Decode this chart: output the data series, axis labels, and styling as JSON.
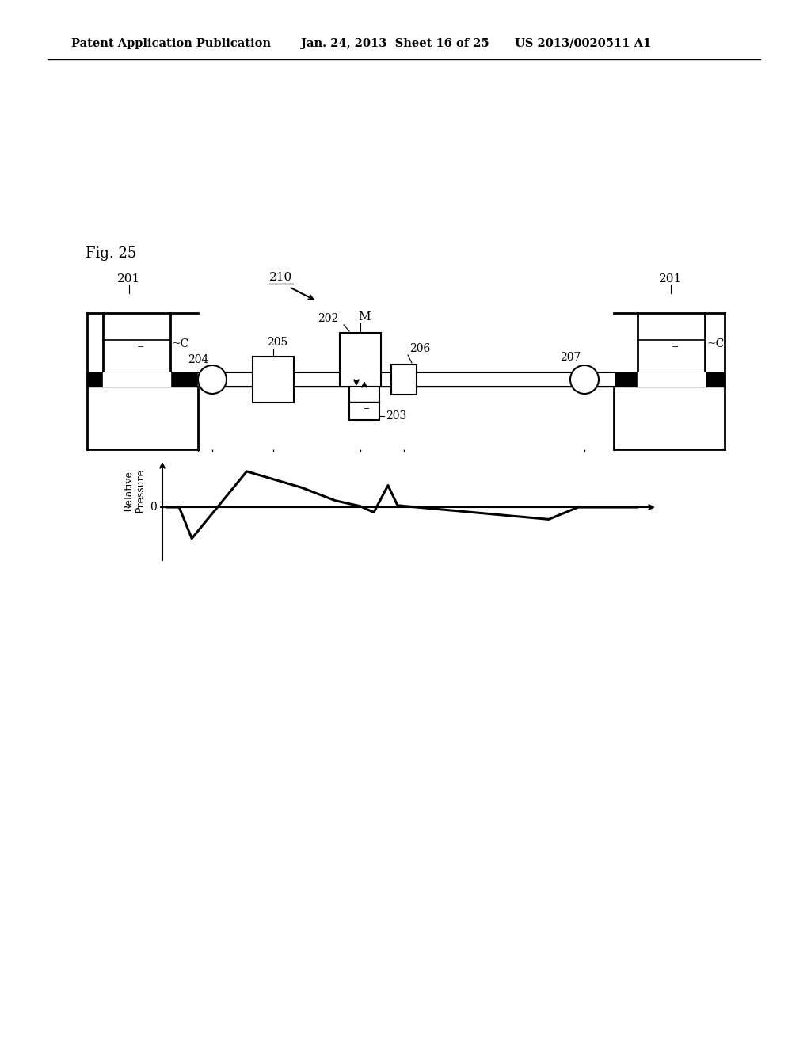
{
  "background_color": "#ffffff",
  "header_left": "Patent Application Publication",
  "header_mid": "Jan. 24, 2013  Sheet 16 of 25",
  "header_right": "US 2013/0020511 A1",
  "fig_label": "Fig. 25",
  "label_210": "210",
  "label_201_left": "201",
  "label_201_right": "201",
  "label_204": "204",
  "label_205": "205",
  "label_202": "202",
  "label_206": "206",
  "label_207": "207",
  "label_203": "203",
  "label_M": "M",
  "label_C_left": "C",
  "label_C_right": "C",
  "ylabel": "Relative\nPressure",
  "zero_label": "0",
  "line_color": "#000000"
}
